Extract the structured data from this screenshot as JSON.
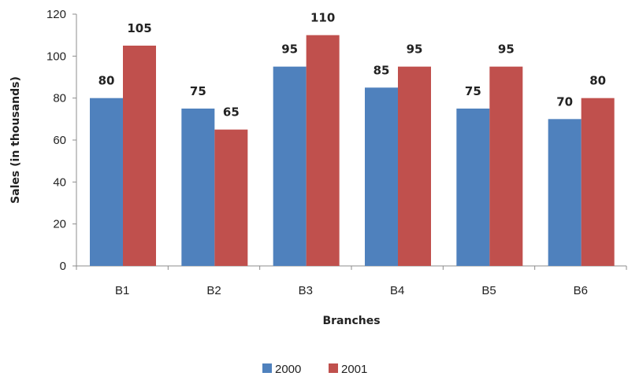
{
  "chart_data": {
    "type": "bar",
    "categories": [
      "B1",
      "B2",
      "B3",
      "B4",
      "B5",
      "B6"
    ],
    "series": [
      {
        "name": "2000",
        "values": [
          80,
          75,
          95,
          85,
          75,
          70
        ],
        "color": "#4f81bd"
      },
      {
        "name": "2001",
        "values": [
          105,
          65,
          110,
          95,
          95,
          80
        ],
        "color": "#c0504d"
      }
    ],
    "title": "",
    "xlabel": "Branches",
    "ylabel": "Sales (in thousands)",
    "ylim": [
      0,
      120
    ],
    "yticks": [
      0,
      20,
      40,
      60,
      80,
      100,
      120
    ],
    "grid": false,
    "data_labels": true,
    "legend_position": "bottom"
  }
}
